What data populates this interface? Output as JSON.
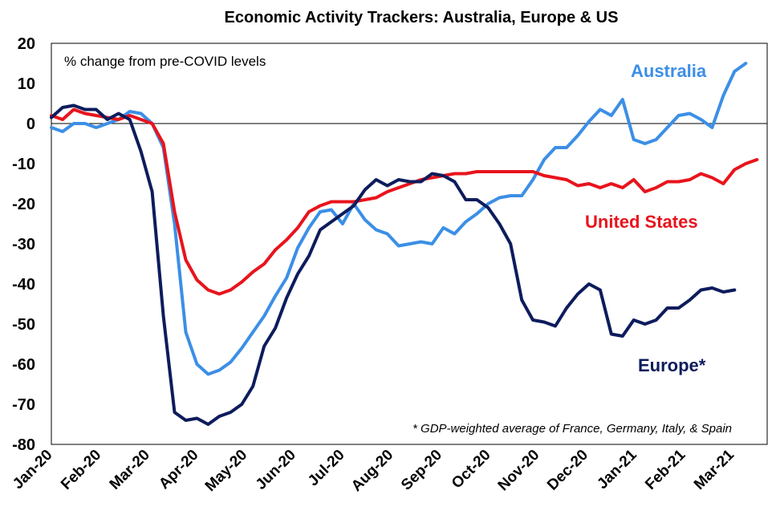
{
  "chart_data": {
    "type": "line",
    "title": "Economic Activity Trackers: Australia, Europe & US",
    "annotation": "% change from pre-COVID levels",
    "footnote": "* GDP-weighted average of France, Germany, Italy, & Spain",
    "ylim": [
      -80,
      20
    ],
    "yticks": [
      20,
      10,
      0,
      -10,
      -20,
      -30,
      -40,
      -50,
      -60,
      -70,
      -80
    ],
    "xlim": [
      0,
      14.7
    ],
    "xtick_labels": [
      "Jan-20",
      "Feb-20",
      "Mar-20",
      "Apr-20",
      "May-20",
      "Jun-20",
      "Jul-20",
      "Aug-20",
      "Sep-20",
      "Oct-20",
      "Nov-20",
      "Dec-20",
      "Jan-21",
      "Feb-21",
      "Mar-21"
    ],
    "grid": false,
    "zero_line": true,
    "series": [
      {
        "name": "Australia",
        "color": "#3c8fe6",
        "points": [
          [
            0.0,
            -1
          ],
          [
            0.23,
            -2
          ],
          [
            0.46,
            0
          ],
          [
            0.69,
            0
          ],
          [
            0.92,
            -1
          ],
          [
            1.15,
            0
          ],
          [
            1.38,
            1
          ],
          [
            1.61,
            3
          ],
          [
            1.84,
            2.5
          ],
          [
            2.07,
            0
          ],
          [
            2.3,
            -6
          ],
          [
            2.53,
            -25
          ],
          [
            2.76,
            -52
          ],
          [
            2.99,
            -60
          ],
          [
            3.22,
            -62.5
          ],
          [
            3.45,
            -61.5
          ],
          [
            3.68,
            -59.5
          ],
          [
            3.91,
            -56
          ],
          [
            4.14,
            -52
          ],
          [
            4.37,
            -48
          ],
          [
            4.6,
            -43
          ],
          [
            4.83,
            -38.5
          ],
          [
            5.06,
            -31
          ],
          [
            5.29,
            -26
          ],
          [
            5.52,
            -22
          ],
          [
            5.75,
            -21.5
          ],
          [
            5.98,
            -25
          ],
          [
            6.21,
            -20
          ],
          [
            6.44,
            -24
          ],
          [
            6.67,
            -26.5
          ],
          [
            6.9,
            -27.5
          ],
          [
            7.13,
            -30.5
          ],
          [
            7.36,
            -30
          ],
          [
            7.59,
            -29.5
          ],
          [
            7.82,
            -30
          ],
          [
            8.05,
            -26
          ],
          [
            8.28,
            -27.5
          ],
          [
            8.51,
            -24.5
          ],
          [
            8.74,
            -22.5
          ],
          [
            8.97,
            -20
          ],
          [
            9.2,
            -18.5
          ],
          [
            9.43,
            -18
          ],
          [
            9.66,
            -18
          ],
          [
            9.89,
            -14
          ],
          [
            10.12,
            -9
          ],
          [
            10.35,
            -6
          ],
          [
            10.58,
            -6
          ],
          [
            10.81,
            -3
          ],
          [
            11.04,
            0.5
          ],
          [
            11.27,
            3.5
          ],
          [
            11.5,
            2
          ],
          [
            11.73,
            6
          ],
          [
            11.96,
            -4
          ],
          [
            12.19,
            -5
          ],
          [
            12.42,
            -4
          ],
          [
            12.65,
            -1
          ],
          [
            12.88,
            2
          ],
          [
            13.11,
            2.5
          ],
          [
            13.34,
            1
          ],
          [
            13.57,
            -1
          ],
          [
            13.8,
            7
          ],
          [
            14.03,
            13
          ],
          [
            14.26,
            15
          ]
        ]
      },
      {
        "name": "United States",
        "color": "#e8141c",
        "points": [
          [
            0.0,
            2
          ],
          [
            0.23,
            1
          ],
          [
            0.46,
            3.5
          ],
          [
            0.69,
            2.5
          ],
          [
            0.92,
            2
          ],
          [
            1.15,
            1.5
          ],
          [
            1.38,
            1
          ],
          [
            1.61,
            2
          ],
          [
            1.84,
            1
          ],
          [
            2.07,
            0
          ],
          [
            2.3,
            -5
          ],
          [
            2.53,
            -22
          ],
          [
            2.76,
            -34
          ],
          [
            2.99,
            -39
          ],
          [
            3.22,
            -41.5
          ],
          [
            3.45,
            -42.5
          ],
          [
            3.68,
            -41.5
          ],
          [
            3.91,
            -39.5
          ],
          [
            4.14,
            -37
          ],
          [
            4.37,
            -35
          ],
          [
            4.6,
            -31.5
          ],
          [
            4.83,
            -29
          ],
          [
            5.06,
            -26
          ],
          [
            5.29,
            -22
          ],
          [
            5.52,
            -20.5
          ],
          [
            5.75,
            -19.5
          ],
          [
            5.98,
            -19.5
          ],
          [
            6.21,
            -19.5
          ],
          [
            6.44,
            -19
          ],
          [
            6.67,
            -18.5
          ],
          [
            6.9,
            -17
          ],
          [
            7.13,
            -16
          ],
          [
            7.36,
            -15
          ],
          [
            7.59,
            -14
          ],
          [
            7.82,
            -13.5
          ],
          [
            8.05,
            -13
          ],
          [
            8.28,
            -12.5
          ],
          [
            8.51,
            -12.5
          ],
          [
            8.74,
            -12
          ],
          [
            8.97,
            -12
          ],
          [
            9.2,
            -12
          ],
          [
            9.43,
            -12
          ],
          [
            9.66,
            -12
          ],
          [
            9.89,
            -12
          ],
          [
            10.12,
            -13
          ],
          [
            10.35,
            -13.5
          ],
          [
            10.58,
            -14
          ],
          [
            10.81,
            -15.5
          ],
          [
            11.04,
            -15
          ],
          [
            11.27,
            -16
          ],
          [
            11.5,
            -15
          ],
          [
            11.73,
            -16
          ],
          [
            11.96,
            -14
          ],
          [
            12.19,
            -17
          ],
          [
            12.42,
            -16
          ],
          [
            12.65,
            -14.5
          ],
          [
            12.88,
            -14.5
          ],
          [
            13.11,
            -14
          ],
          [
            13.34,
            -12.5
          ],
          [
            13.57,
            -13.5
          ],
          [
            13.8,
            -15
          ],
          [
            14.03,
            -11.5
          ],
          [
            14.26,
            -10
          ],
          [
            14.49,
            -9
          ]
        ]
      },
      {
        "name": "Europe*",
        "color": "#0d1c5c",
        "points": [
          [
            0.0,
            1.5
          ],
          [
            0.23,
            4
          ],
          [
            0.46,
            4.5
          ],
          [
            0.69,
            3.5
          ],
          [
            0.92,
            3.5
          ],
          [
            1.15,
            1
          ],
          [
            1.38,
            2.5
          ],
          [
            1.61,
            1
          ],
          [
            1.84,
            -7
          ],
          [
            2.07,
            -17
          ],
          [
            2.3,
            -48
          ],
          [
            2.53,
            -72
          ],
          [
            2.76,
            -74
          ],
          [
            2.99,
            -73.5
          ],
          [
            3.22,
            -75
          ],
          [
            3.45,
            -73
          ],
          [
            3.68,
            -72
          ],
          [
            3.91,
            -70
          ],
          [
            4.14,
            -65.5
          ],
          [
            4.37,
            -55.5
          ],
          [
            4.6,
            -51
          ],
          [
            4.83,
            -43.5
          ],
          [
            5.06,
            -37.5
          ],
          [
            5.29,
            -33
          ],
          [
            5.52,
            -26.5
          ],
          [
            5.75,
            -24.5
          ],
          [
            5.98,
            -22.5
          ],
          [
            6.21,
            -20.5
          ],
          [
            6.44,
            -16.5
          ],
          [
            6.67,
            -14
          ],
          [
            6.9,
            -15.5
          ],
          [
            7.13,
            -14
          ],
          [
            7.36,
            -14.5
          ],
          [
            7.59,
            -14.5
          ],
          [
            7.82,
            -12.5
          ],
          [
            8.05,
            -13
          ],
          [
            8.28,
            -14.5
          ],
          [
            8.51,
            -19
          ],
          [
            8.74,
            -19
          ],
          [
            8.97,
            -21
          ],
          [
            9.2,
            -25
          ],
          [
            9.43,
            -30
          ],
          [
            9.66,
            -44
          ],
          [
            9.89,
            -49
          ],
          [
            10.12,
            -49.5
          ],
          [
            10.35,
            -50.5
          ],
          [
            10.58,
            -46
          ],
          [
            10.81,
            -42.5
          ],
          [
            11.04,
            -40
          ],
          [
            11.27,
            -41.5
          ],
          [
            11.5,
            -52.5
          ],
          [
            11.73,
            -53
          ],
          [
            11.96,
            -49
          ],
          [
            12.19,
            -50
          ],
          [
            12.42,
            -49
          ],
          [
            12.65,
            -46
          ],
          [
            12.88,
            -46
          ],
          [
            13.11,
            -44
          ],
          [
            13.34,
            -41.5
          ],
          [
            13.57,
            -41
          ],
          [
            13.8,
            -42
          ],
          [
            14.03,
            -41.5
          ]
        ]
      }
    ]
  }
}
